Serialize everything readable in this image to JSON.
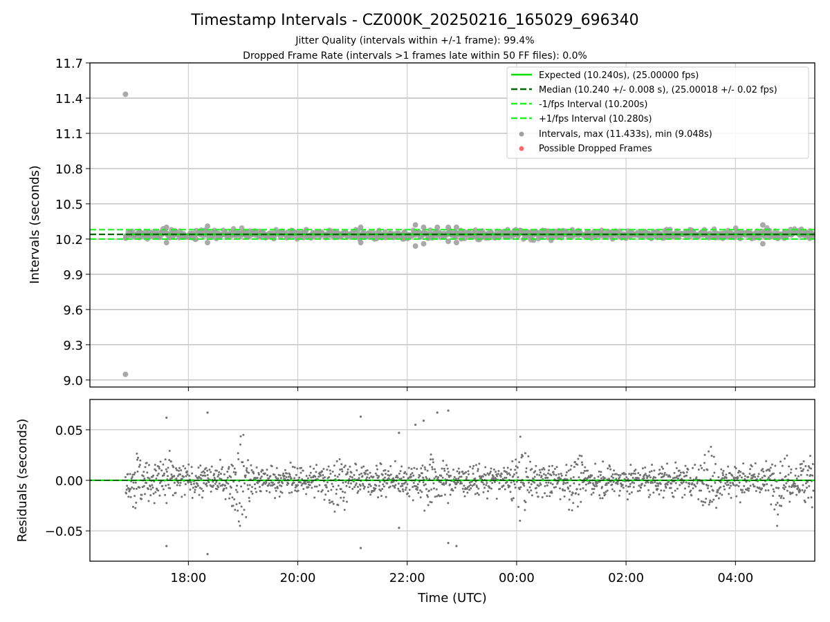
{
  "chart_data": [
    {
      "type": "scatter",
      "title": "Timestamp Intervals - CZ000K_20250216_165029_696340",
      "subtitle_lines": [
        "Jitter Quality (intervals within +/-1 frame): 99.4%",
        "Dropped Frame Rate (intervals >1 frames late within 50 FF files): 0.0%"
      ],
      "ylabel": "Intervals (seconds)",
      "ylim": [
        8.94,
        11.7
      ],
      "yticks": [
        9.0,
        9.3,
        9.6,
        9.9,
        10.2,
        10.5,
        10.8,
        11.1,
        11.4,
        11.7
      ],
      "ytick_labels": [
        "9.0",
        "9.3",
        "9.6",
        "9.9",
        "10.2",
        "10.5",
        "10.8",
        "11.1",
        "11.4",
        "11.7"
      ],
      "xlim_hours": [
        16.2,
        29.45
      ],
      "xticks_hours": [
        18,
        20,
        22,
        24,
        26,
        28
      ],
      "xtick_labels": [
        "18:00",
        "20:00",
        "22:00",
        "00:00",
        "02:00",
        "04:00"
      ],
      "grid": true,
      "legend_position": "top-right",
      "legend": [
        "Expected (10.240s), (25.00000 fps)",
        "Median (10.240 +/- 0.008 s), (25.00018 +/- 0.02 fps)",
        "-1/fps Interval (10.200s)",
        "+1/fps Interval (10.280s)",
        "Intervals, max (11.433s), min (9.048s)",
        "Possible Dropped Frames"
      ],
      "lines": {
        "expected": 10.24,
        "median": 10.24,
        "minus_interval": 10.2,
        "plus_interval": 10.28
      },
      "outliers": [
        {
          "x": 16.85,
          "y": 11.433
        },
        {
          "x": 16.85,
          "y": 9.048
        },
        {
          "x": 17.6,
          "y": 10.3
        },
        {
          "x": 17.6,
          "y": 10.17
        },
        {
          "x": 18.35,
          "y": 10.31
        },
        {
          "x": 18.35,
          "y": 10.17
        },
        {
          "x": 21.15,
          "y": 10.3
        },
        {
          "x": 21.15,
          "y": 10.17
        },
        {
          "x": 22.15,
          "y": 10.32
        },
        {
          "x": 22.15,
          "y": 10.14
        },
        {
          "x": 22.3,
          "y": 10.3
        },
        {
          "x": 22.3,
          "y": 10.16
        },
        {
          "x": 22.55,
          "y": 10.3
        },
        {
          "x": 22.75,
          "y": 10.3
        },
        {
          "x": 22.75,
          "y": 10.18
        },
        {
          "x": 22.9,
          "y": 10.3
        },
        {
          "x": 22.9,
          "y": 10.17
        },
        {
          "x": 28.5,
          "y": 10.32
        },
        {
          "x": 28.5,
          "y": 10.16
        }
      ],
      "colors": {
        "expected": "#00e000",
        "median": "#006400",
        "intervals": "#a0a0a0",
        "dropped": "#ff5050"
      }
    },
    {
      "type": "scatter",
      "ylabel": "Residuals (seconds)",
      "xlabel": "Time (UTC)",
      "ylim": [
        -0.08,
        0.08
      ],
      "yticks": [
        -0.05,
        0.0,
        0.05
      ],
      "ytick_labels": [
        "−0.05",
        "0.00",
        "0.05"
      ],
      "xlim_hours": [
        16.2,
        29.45
      ],
      "xticks_hours": [
        18,
        20,
        22,
        24,
        26,
        28
      ],
      "xtick_labels": [
        "18:00",
        "20:00",
        "22:00",
        "00:00",
        "02:00",
        "04:00"
      ],
      "grid": true,
      "zero_lines": {
        "median": 0.0,
        "expected": 0.0
      },
      "outliers": [
        {
          "x": 17.6,
          "y": 0.062
        },
        {
          "x": 17.6,
          "y": -0.065
        },
        {
          "x": 18.35,
          "y": 0.067
        },
        {
          "x": 18.35,
          "y": -0.073
        },
        {
          "x": 21.15,
          "y": 0.063
        },
        {
          "x": 21.15,
          "y": -0.067
        },
        {
          "x": 22.15,
          "y": 0.055
        },
        {
          "x": 22.3,
          "y": 0.059
        },
        {
          "x": 22.55,
          "y": 0.067
        },
        {
          "x": 22.75,
          "y": 0.069
        },
        {
          "x": 22.75,
          "y": -0.062
        },
        {
          "x": 22.9,
          "y": -0.065
        },
        {
          "x": 21.85,
          "y": 0.047
        },
        {
          "x": 21.85,
          "y": -0.047
        }
      ],
      "colors": {
        "residuals": "#707070",
        "median": "#006400",
        "expected": "#00e000"
      }
    }
  ]
}
